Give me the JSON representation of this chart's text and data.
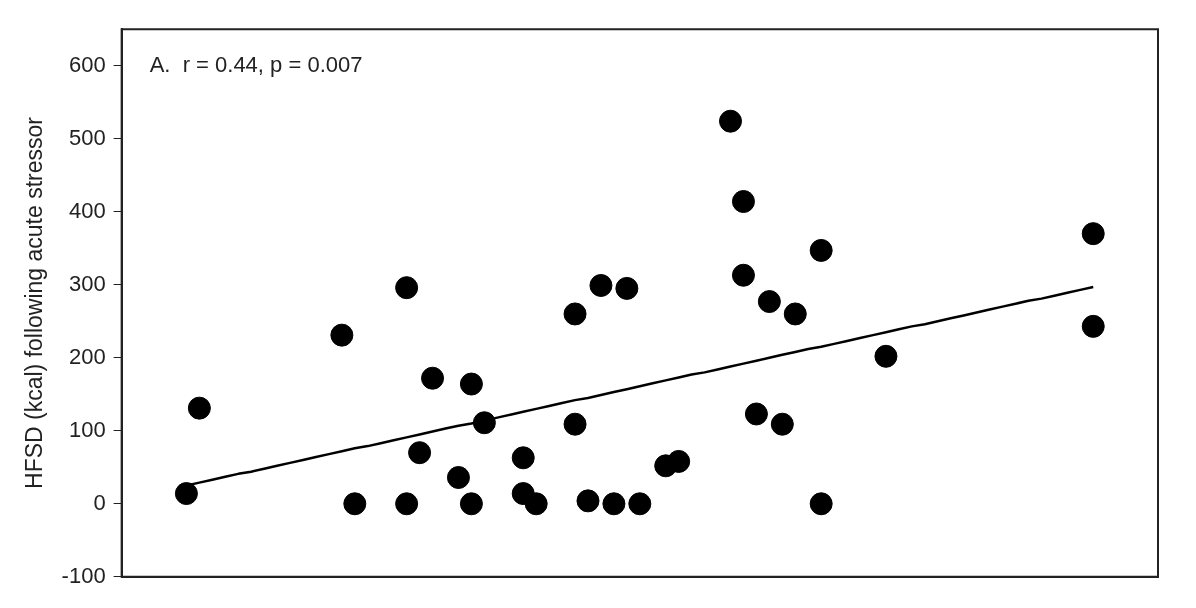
{
  "chart_data": {
    "type": "scatter",
    "ylabel": "HFSD (kcal) following acute stressor",
    "annotations": [
      "A.  r = 0.44, p = 0.007"
    ],
    "categories": [
      null,
      null,
      null,
      null,
      null,
      null,
      null,
      null,
      null,
      null,
      null,
      null,
      null,
      null,
      null,
      null,
      null,
      null,
      null,
      null,
      null,
      null,
      null,
      null,
      null,
      null,
      null,
      null,
      null,
      null,
      null,
      null,
      null,
      null,
      null,
      null,
      null,
      null,
      null,
      null,
      null,
      null,
      null,
      null,
      null,
      null,
      null,
      null,
      null,
      null,
      null,
      null,
      null,
      null,
      null,
      null,
      null,
      null,
      null,
      null,
      null,
      null,
      null,
      null,
      null,
      null,
      null,
      null,
      null,
      null,
      null,
      null,
      null,
      null,
      null,
      null,
      null,
      null,
      null,
      null,
      null
    ],
    "ylim": [
      -100,
      650
    ],
    "yticks": [
      -100,
      0,
      100,
      200,
      300,
      400,
      500,
      600
    ],
    "tick_labels": "y",
    "legend": false,
    "marker": "circle",
    "series": [
      {
        "color": "#000000",
        "values": [
          null,
          null,
          null,
          null,
          null,
          14,
          131,
          null,
          null,
          null,
          null,
          null,
          null,
          null,
          null,
          null,
          null,
          231,
          0,
          null,
          null,
          null,
          296,
          70,
          172,
          null,
          36,
          0,
          111,
          null,
          null,
          63,
          0,
          null,
          null,
          109,
          4,
          299,
          0,
          295,
          0,
          null,
          52,
          58,
          null,
          null,
          null,
          524,
          414,
          123,
          277,
          109,
          260,
          null,
          0,
          null,
          null,
          null,
          null,
          202,
          null,
          null,
          null,
          null,
          null,
          null,
          null,
          null,
          null,
          null,
          null,
          null,
          null,
          null,
          null,
          370,
          null,
          null,
          null,
          null,
          null
        ]
      },
      {
        "color": "#000000",
        "values": [
          null,
          null,
          null,
          null,
          null,
          null,
          null,
          null,
          null,
          null,
          null,
          null,
          null,
          null,
          null,
          null,
          null,
          null,
          null,
          null,
          null,
          null,
          0,
          null,
          null,
          null,
          null,
          164,
          null,
          null,
          null,
          14,
          null,
          null,
          null,
          260,
          null,
          null,
          null,
          null,
          null,
          null,
          null,
          null,
          null,
          null,
          null,
          null,
          313,
          null,
          null,
          null,
          null,
          null,
          347,
          null,
          null,
          null,
          null,
          null,
          null,
          null,
          null,
          null,
          null,
          null,
          null,
          null,
          null,
          null,
          null,
          null,
          null,
          null,
          null,
          243,
          null,
          null,
          null,
          null,
          null
        ]
      },
      {
        "type": "line",
        "color": "#000000",
        "values": [
          null,
          null,
          null,
          null,
          null,
          25,
          29,
          33,
          37,
          41,
          44,
          48,
          52,
          56,
          60,
          64,
          68,
          72,
          76,
          79,
          83,
          87,
          91,
          95,
          99,
          103,
          107,
          110,
          114,
          118,
          122,
          126,
          130,
          134,
          138,
          142,
          145,
          149,
          153,
          157,
          161,
          165,
          169,
          173,
          177,
          180,
          184,
          188,
          192,
          196,
          200,
          204,
          208,
          212,
          215,
          219,
          223,
          227,
          231,
          235,
          239,
          243,
          246,
          250,
          254,
          258,
          262,
          266,
          270,
          274,
          278,
          281,
          285,
          289,
          293,
          297,
          null,
          null,
          null,
          null,
          null
        ],
        "marker": "none",
        "line_style": "solid"
      }
    ]
  }
}
